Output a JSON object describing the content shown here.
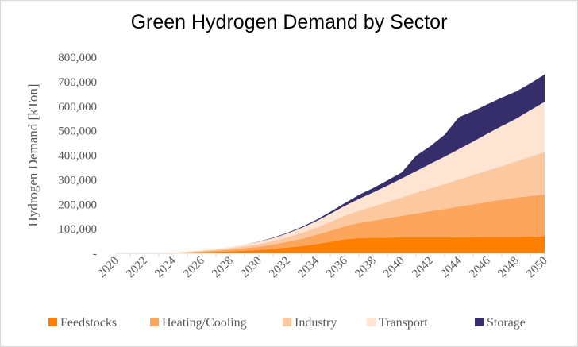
{
  "chart_data": {
    "type": "area",
    "stacked": true,
    "title": "Green Hydrogen Demand by Sector",
    "xlabel": "",
    "ylabel": "Hydrogen Demand [kTon]",
    "ylim": [
      0,
      800000
    ],
    "yticks": [
      "-",
      "100,000",
      "200,000",
      "300,000",
      "400,000",
      "500,000",
      "600,000",
      "700,000",
      "800,000"
    ],
    "xtick_labels": [
      "2020",
      "2022",
      "2024",
      "2026",
      "2028",
      "2030",
      "2032",
      "2034",
      "2036",
      "2038",
      "2040",
      "2042",
      "2044",
      "2046",
      "2048",
      "2050"
    ],
    "x": [
      2020,
      2021,
      2022,
      2023,
      2024,
      2025,
      2026,
      2027,
      2028,
      2029,
      2030,
      2031,
      2032,
      2033,
      2034,
      2035,
      2036,
      2037,
      2038,
      2039,
      2040,
      2041,
      2042,
      2043,
      2044,
      2045,
      2046,
      2047,
      2048,
      2049,
      2050
    ],
    "grid": false,
    "legend_position": "bottom",
    "series": [
      {
        "name": "Feedstocks",
        "color": "#ff8000",
        "values": [
          0,
          0,
          0,
          0,
          1000,
          2000,
          4000,
          6000,
          8000,
          11000,
          14000,
          18000,
          24000,
          30000,
          38000,
          47000,
          57000,
          62000,
          63000,
          64000,
          65000,
          65000,
          65000,
          65000,
          66000,
          66000,
          67000,
          67000,
          67000,
          68000,
          68000
        ]
      },
      {
        "name": "Heating/Cooling",
        "color": "#fba65c",
        "values": [
          0,
          0,
          0,
          0,
          1000,
          2000,
          3000,
          5000,
          7000,
          10000,
          13000,
          18000,
          23000,
          30000,
          37000,
          45000,
          53000,
          62000,
          70000,
          79000,
          88000,
          98000,
          107000,
          116000,
          125000,
          134000,
          143000,
          152000,
          160000,
          166000,
          172000
        ]
      },
      {
        "name": "Industry",
        "color": "#fcc8a0",
        "values": [
          0,
          0,
          0,
          0,
          1000,
          1500,
          3000,
          4000,
          6000,
          8000,
          10000,
          14000,
          18000,
          23000,
          29000,
          36000,
          43000,
          50000,
          58000,
          66000,
          75000,
          84000,
          93000,
          101000,
          110000,
          119000,
          128000,
          137000,
          147000,
          160000,
          174000
        ]
      },
      {
        "name": "Transport",
        "color": "#fde4d3",
        "values": [
          0,
          0,
          0,
          0,
          500,
          1500,
          2000,
          3000,
          5000,
          7000,
          10000,
          12000,
          16000,
          21000,
          27000,
          33000,
          40000,
          48000,
          57000,
          67000,
          77000,
          88000,
          100000,
          112000,
          124000,
          137000,
          150000,
          163000,
          175000,
          190000,
          204000
        ]
      },
      {
        "name": "Storage",
        "color": "#352e6b",
        "values": [
          0,
          0,
          0,
          0,
          0,
          0,
          0,
          0,
          0,
          0,
          1000,
          2000,
          3000,
          4000,
          5000,
          8000,
          11000,
          16000,
          18000,
          21000,
          25000,
          63000,
          72000,
          90000,
          130000,
          124000,
          120000,
          116000,
          111000,
          109000,
          112000
        ]
      }
    ]
  }
}
